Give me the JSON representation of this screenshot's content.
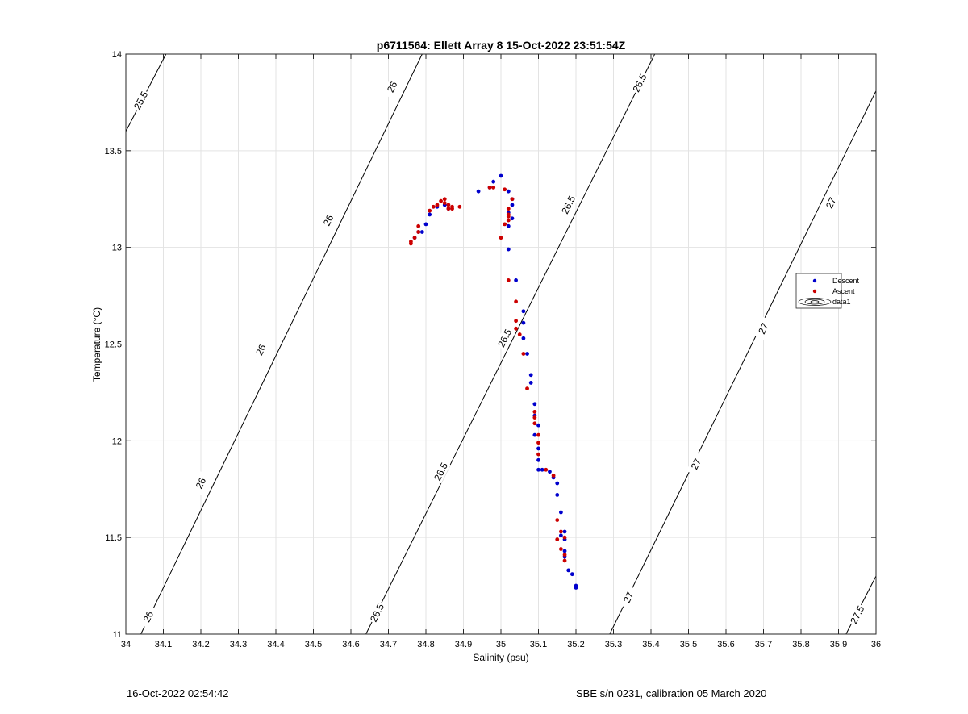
{
  "footer": {
    "left": "16-Oct-2022 02:54:42",
    "right": "SBE s/n 0231, calibration 05 March 2020"
  },
  "chart_data": {
    "type": "scatter",
    "title": "p6711564: Ellett Array 8 15-Oct-2022 23:51:54Z",
    "xlabel": "Salinity (psu)",
    "ylabel": "Temperature (°C)",
    "xlim": [
      34,
      36
    ],
    "ylim": [
      11,
      14
    ],
    "xticks": [
      "34",
      "34.1",
      "34.2",
      "34.3",
      "34.4",
      "34.5",
      "34.6",
      "34.7",
      "34.8",
      "34.9",
      "35",
      "35.1",
      "35.2",
      "35.3",
      "35.4",
      "35.5",
      "35.6",
      "35.7",
      "35.8",
      "35.9",
      "36"
    ],
    "yticks": [
      "11",
      "11.5",
      "12",
      "12.5",
      "13",
      "13.5",
      "14"
    ],
    "grid": true,
    "legend": {
      "placement": "right",
      "entries": [
        {
          "label": "Descent",
          "color": "#0000cc"
        },
        {
          "label": "Ascent",
          "color": "#cc0000"
        },
        {
          "label": "data1",
          "color": "#000000"
        }
      ]
    },
    "contours": [
      {
        "label": "25.5",
        "points": [
          [
            34.0,
            13.6
          ],
          [
            34.107,
            14.0
          ]
        ],
        "labels": [
          {
            "x": 34.04,
            "y": 13.76
          }
        ]
      },
      {
        "label": "26",
        "points": [
          [
            34.04,
            11.0
          ],
          [
            34.79,
            14.0
          ]
        ],
        "labels": [
          {
            "x": 34.06,
            "y": 11.09
          },
          {
            "x": 34.2,
            "y": 11.78
          },
          {
            "x": 34.36,
            "y": 12.47
          },
          {
            "x": 34.54,
            "y": 13.14
          },
          {
            "x": 34.71,
            "y": 13.83
          }
        ]
      },
      {
        "label": "26.5",
        "points": [
          [
            34.64,
            11.0
          ],
          [
            35.41,
            14.0
          ]
        ],
        "labels": [
          {
            "x": 34.67,
            "y": 11.11
          },
          {
            "x": 34.84,
            "y": 11.84
          },
          {
            "x": 35.01,
            "y": 12.53
          },
          {
            "x": 35.18,
            "y": 13.22
          },
          {
            "x": 35.37,
            "y": 13.85
          }
        ]
      },
      {
        "label": "27",
        "points": [
          [
            35.29,
            11.0
          ],
          [
            36.0,
            13.81
          ]
        ],
        "labels": [
          {
            "x": 35.34,
            "y": 11.19
          },
          {
            "x": 35.52,
            "y": 11.88
          },
          {
            "x": 35.7,
            "y": 12.58
          },
          {
            "x": 35.88,
            "y": 13.23
          }
        ]
      },
      {
        "label": "27.5",
        "points": [
          [
            35.92,
            11.0
          ],
          [
            36.0,
            11.3
          ]
        ],
        "labels": [
          {
            "x": 35.95,
            "y": 11.1
          }
        ]
      }
    ],
    "series": [
      {
        "name": "Descent",
        "color": "#0000cc",
        "x": [
          35.0,
          34.98,
          34.97,
          34.94,
          35.02,
          35.03,
          35.03,
          35.02,
          35.03,
          35.02,
          35.02,
          35.04,
          35.06,
          35.06,
          35.06,
          35.07,
          35.08,
          35.08,
          35.09,
          35.09,
          35.1,
          35.09,
          35.1,
          35.1,
          35.1,
          35.11,
          35.13,
          35.14,
          35.15,
          35.15,
          35.16,
          35.17,
          35.16,
          35.17,
          35.17,
          35.17,
          35.18,
          35.19,
          35.2,
          35.2,
          34.86,
          34.85,
          34.83,
          34.81,
          34.8,
          34.79,
          34.78,
          34.77
        ],
        "y": [
          13.37,
          13.34,
          13.31,
          13.29,
          13.29,
          13.25,
          13.22,
          13.18,
          13.15,
          13.11,
          12.99,
          12.83,
          12.67,
          12.61,
          12.53,
          12.45,
          12.34,
          12.3,
          12.19,
          12.13,
          12.08,
          12.03,
          11.96,
          11.9,
          11.85,
          11.85,
          11.84,
          11.81,
          11.78,
          11.72,
          11.63,
          11.53,
          11.51,
          11.49,
          11.43,
          11.4,
          11.33,
          11.31,
          11.25,
          11.24,
          13.2,
          13.22,
          13.21,
          13.17,
          13.12,
          13.08,
          13.08,
          13.05
        ]
      },
      {
        "name": "Ascent",
        "color": "#cc0000",
        "x": [
          34.76,
          34.76,
          34.77,
          34.78,
          34.78,
          34.81,
          34.82,
          34.83,
          34.84,
          34.85,
          34.85,
          34.86,
          34.86,
          34.87,
          34.87,
          34.89,
          34.97,
          34.98,
          35.01,
          35.0,
          35.02,
          35.02,
          35.02,
          35.03,
          35.02,
          35.01,
          35.02,
          35.04,
          35.04,
          35.04,
          35.05,
          35.06,
          35.07,
          35.09,
          35.09,
          35.09,
          35.1,
          35.1,
          35.1,
          35.12,
          35.14,
          35.15,
          35.15,
          35.16,
          35.16,
          35.17,
          35.17,
          35.17
        ],
        "y": [
          13.02,
          13.03,
          13.05,
          13.08,
          13.11,
          13.19,
          13.21,
          13.22,
          13.24,
          13.25,
          13.23,
          13.2,
          13.22,
          13.21,
          13.2,
          13.21,
          13.31,
          13.31,
          13.3,
          13.05,
          13.14,
          13.17,
          13.2,
          13.25,
          12.83,
          13.12,
          13.16,
          12.72,
          12.62,
          12.58,
          12.55,
          12.45,
          12.27,
          12.15,
          12.12,
          12.09,
          12.03,
          11.99,
          11.93,
          11.85,
          11.82,
          11.59,
          11.49,
          11.53,
          11.44,
          11.41,
          11.38,
          11.5
        ]
      }
    ]
  }
}
